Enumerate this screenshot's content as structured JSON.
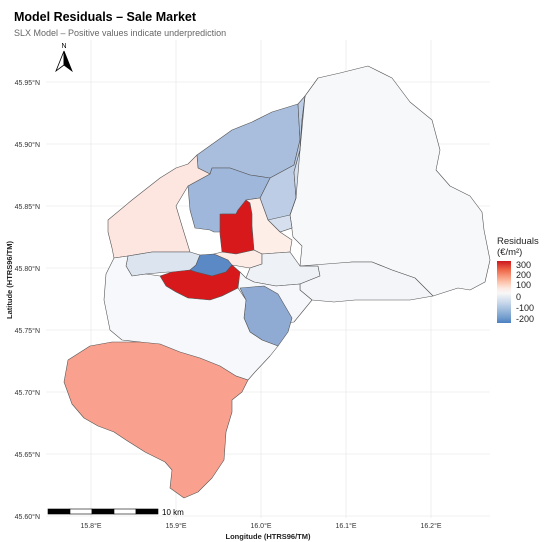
{
  "title": "Model Residuals – Sale Market",
  "subtitle": "SLX Model – Positive values indicate underprediction",
  "x_axis": {
    "label": "Longitude (HTRS96/TM)",
    "ticks": [
      "15.8°E",
      "15.9°E",
      "16.0°E",
      "16.1°E",
      "16.2°E"
    ]
  },
  "y_axis": {
    "label": "Latitude (HTRS96/TM)",
    "ticks": [
      "45.95°N",
      "45.90°N",
      "45.85°N",
      "45.80°N",
      "45.75°N",
      "45.70°N",
      "45.65°N",
      "45.60°N"
    ]
  },
  "north_arrow_label": "N",
  "scale_bar_label": "10 km",
  "legend": {
    "title_line1": "Residuals",
    "title_line2": "(€/m²)",
    "labels": [
      "300",
      "200",
      "100",
      "0",
      "-100",
      "-200"
    ],
    "color_low": "#4a7fc0",
    "color_mid": "#f7f7f7",
    "color_high": "#cb181d"
  },
  "districts": [
    {
      "id": "north-east",
      "fill": "#f7f8fa"
    },
    {
      "id": "north-central",
      "fill": "#a9bedd"
    },
    {
      "id": "north-central-east",
      "fill": "#bccde5"
    },
    {
      "id": "north-inner",
      "fill": "#9fb7da"
    },
    {
      "id": "east-small",
      "fill": "#d5dfee"
    },
    {
      "id": "west",
      "fill": "#fde5e0"
    },
    {
      "id": "center-north-red",
      "fill": "#d7191c"
    },
    {
      "id": "center-north-pink",
      "fill": "#fdeee8"
    },
    {
      "id": "center-west",
      "fill": "#dce4f0"
    },
    {
      "id": "center-blue",
      "fill": "#5b89c5"
    },
    {
      "id": "center-light-pink",
      "fill": "#fdece6"
    },
    {
      "id": "center-right",
      "fill": "#eef1f6"
    },
    {
      "id": "east",
      "fill": "#f3f5f9"
    },
    {
      "id": "center-red",
      "fill": "#d7191c"
    },
    {
      "id": "center-south",
      "fill": "#f6f7fa"
    },
    {
      "id": "south-blue",
      "fill": "#8fabd4"
    },
    {
      "id": "south-band",
      "fill": "#f7f8fb"
    },
    {
      "id": "south-west",
      "fill": "#f9a18e"
    }
  ]
}
